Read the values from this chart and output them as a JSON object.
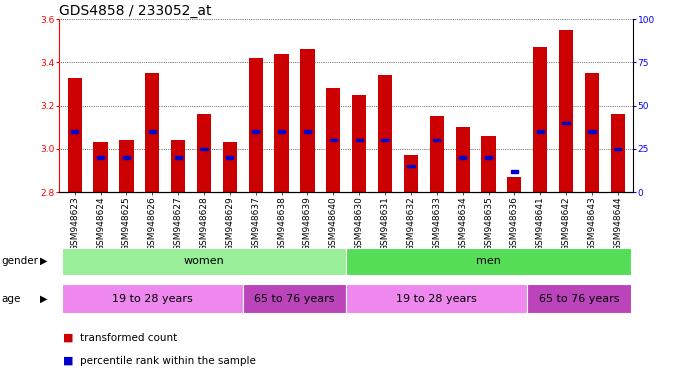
{
  "title": "GDS4858 / 233052_at",
  "samples": [
    "GSM948623",
    "GSM948624",
    "GSM948625",
    "GSM948626",
    "GSM948627",
    "GSM948628",
    "GSM948629",
    "GSM948637",
    "GSM948638",
    "GSM948639",
    "GSM948640",
    "GSM948630",
    "GSM948631",
    "GSM948632",
    "GSM948633",
    "GSM948634",
    "GSM948635",
    "GSM948636",
    "GSM948641",
    "GSM948642",
    "GSM948643",
    "GSM948644"
  ],
  "bar_values": [
    3.33,
    3.03,
    3.04,
    3.35,
    3.04,
    3.16,
    3.03,
    3.42,
    3.44,
    3.46,
    3.28,
    3.25,
    3.34,
    2.97,
    3.15,
    3.1,
    3.06,
    2.87,
    3.47,
    3.55,
    3.35,
    3.16
  ],
  "percentile_values": [
    35,
    20,
    20,
    35,
    20,
    25,
    20,
    35,
    35,
    35,
    30,
    30,
    30,
    15,
    30,
    20,
    20,
    12,
    35,
    40,
    35,
    25
  ],
  "ymin": 2.8,
  "ymax": 3.6,
  "y2min": 0,
  "y2max": 100,
  "yticks": [
    2.8,
    3.0,
    3.2,
    3.4,
    3.6
  ],
  "y2ticks": [
    0,
    25,
    50,
    75,
    100
  ],
  "bar_color": "#cc0000",
  "percentile_color": "#0000cc",
  "background_color": "#ffffff",
  "group_gender": [
    {
      "label": "women",
      "start": 0,
      "end": 11,
      "color": "#99ee99"
    },
    {
      "label": "men",
      "start": 11,
      "end": 22,
      "color": "#55dd55"
    }
  ],
  "group_age": [
    {
      "label": "19 to 28 years",
      "start": 0,
      "end": 7,
      "color": "#ee88ee"
    },
    {
      "label": "65 to 76 years",
      "start": 7,
      "end": 11,
      "color": "#bb44bb"
    },
    {
      "label": "19 to 28 years",
      "start": 11,
      "end": 18,
      "color": "#ee88ee"
    },
    {
      "label": "65 to 76 years",
      "start": 18,
      "end": 22,
      "color": "#bb44bb"
    }
  ],
  "legend_items": [
    {
      "label": "transformed count",
      "color": "#cc0000"
    },
    {
      "label": "percentile rank within the sample",
      "color": "#0000cc"
    }
  ],
  "title_fontsize": 10,
  "tick_fontsize": 6.5,
  "label_fontsize": 7.5,
  "group_fontsize": 8
}
